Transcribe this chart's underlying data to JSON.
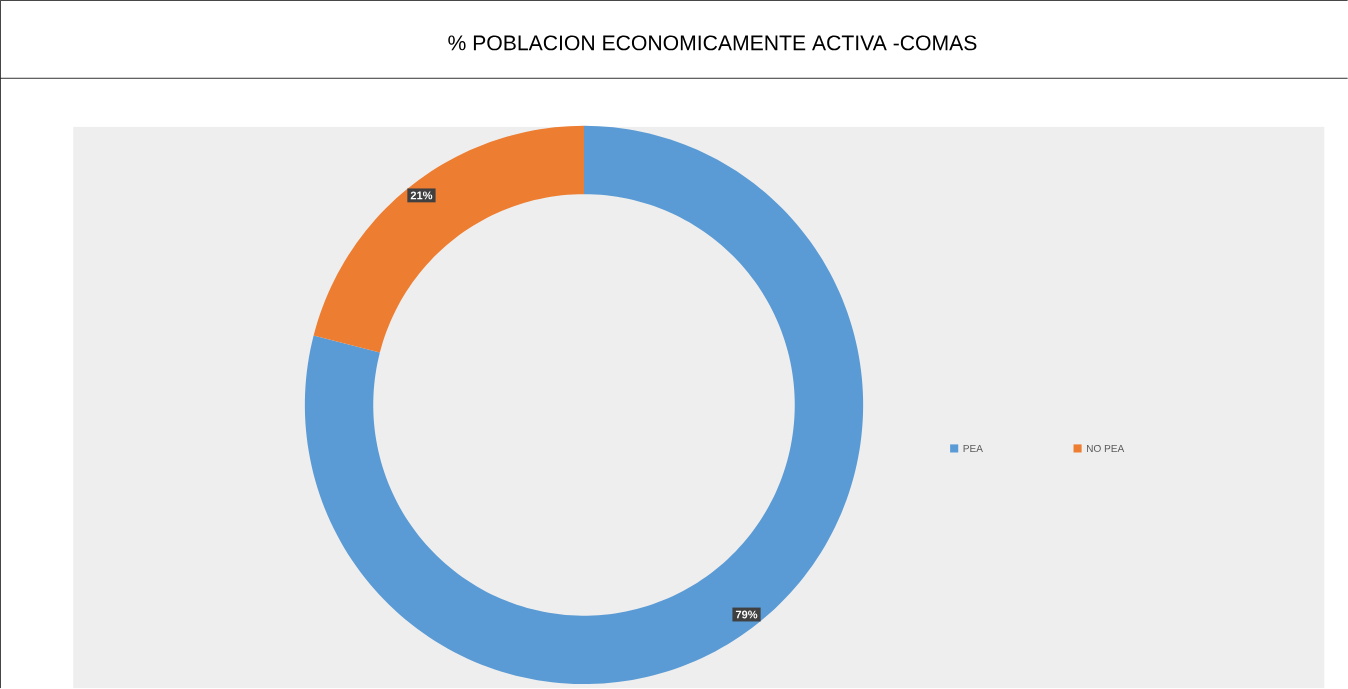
{
  "chart_data": {
    "type": "donut",
    "title": "% POBLACION ECONOMICAMENTE ACTIVA -COMAS",
    "categories": [
      "PEA",
      "NO PEA"
    ],
    "values": [
      79,
      21
    ],
    "colors": [
      "#5b9bd5",
      "#ed7d31"
    ],
    "value_labels": [
      "79%",
      "21%"
    ],
    "legend": "right"
  }
}
